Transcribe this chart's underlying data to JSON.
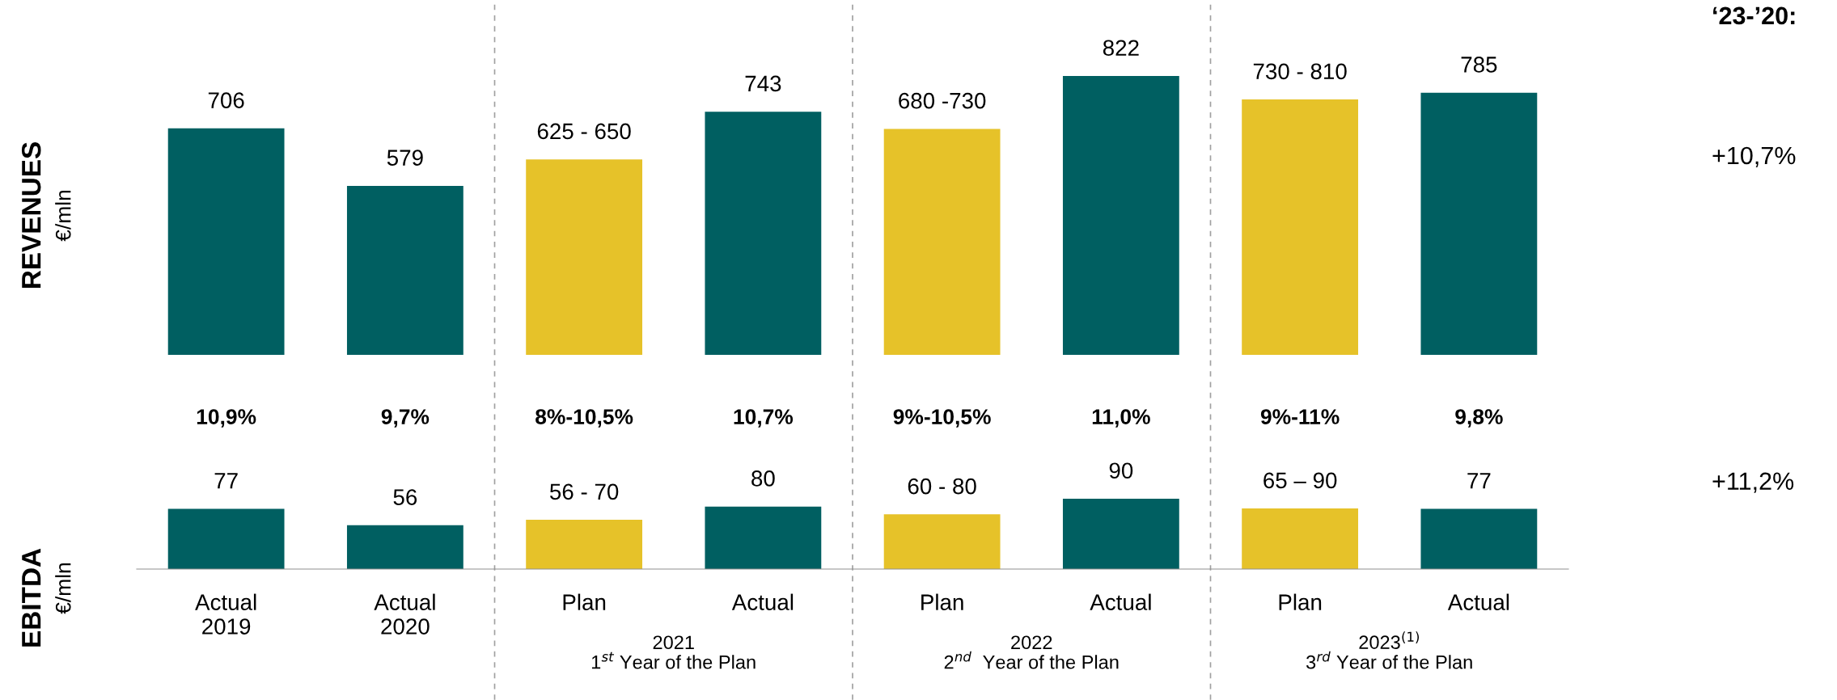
{
  "chart_data": [
    {
      "type": "bar",
      "ylabel": "REVENUES\n€/mln",
      "ylim": [
        205,
        822
      ],
      "tick_labels": false,
      "categories": [
        null,
        null,
        null,
        null,
        null,
        null,
        null,
        null
      ],
      "values": [
        706,
        579,
        637.5,
        743,
        705,
        822,
        770,
        785
      ],
      "colors": [
        "#005f61",
        "#005f61",
        "#e6c229",
        "#005f61",
        "#e6c229",
        "#005f61",
        "#e6c229",
        "#005f61"
      ],
      "value_labels": [
        "706",
        "579",
        null,
        "743",
        null,
        "822",
        null,
        "785"
      ],
      "annotations": [
        "‘23-’20:",
        "+10,7%",
        "625 - 650",
        "680 -730",
        "730 - 810"
      ]
    },
    {
      "type": "bar",
      "ylabel": "EBITDA\n€/mln",
      "ylim": [
        0,
        90
      ],
      "tick_labels": "x",
      "categories": [
        "Actual\n2019",
        "Actual\n2020",
        "Plan",
        "Actual",
        "Plan",
        "Actual",
        "Plan",
        "Actual"
      ],
      "values": [
        77,
        56,
        63,
        80,
        70,
        90,
        77.5,
        77
      ],
      "colors": [
        "#005f61",
        "#005f61",
        "#e6c229",
        "#005f61",
        "#e6c229",
        "#005f61",
        "#e6c229",
        "#005f61"
      ],
      "value_labels": [
        "77",
        "56",
        null,
        "80",
        null,
        "90",
        null,
        "77"
      ],
      "annotations": [
        "10,9%",
        "9,7%",
        "8%-10,5%",
        "10,7%",
        "9%-10,5%",
        "11,0%",
        "9%-11%",
        "9,8%",
        "2021\n1$^{st}$ Year of the Plan",
        "2022\n2$^{nd}$  Year of the Plan",
        "2023$^{(1)}$\n3$^{rd}$ Year of the Plan",
        "+11,2%",
        "56 - 70",
        "60 - 80",
        "65 – 90"
      ]
    }
  ]
}
